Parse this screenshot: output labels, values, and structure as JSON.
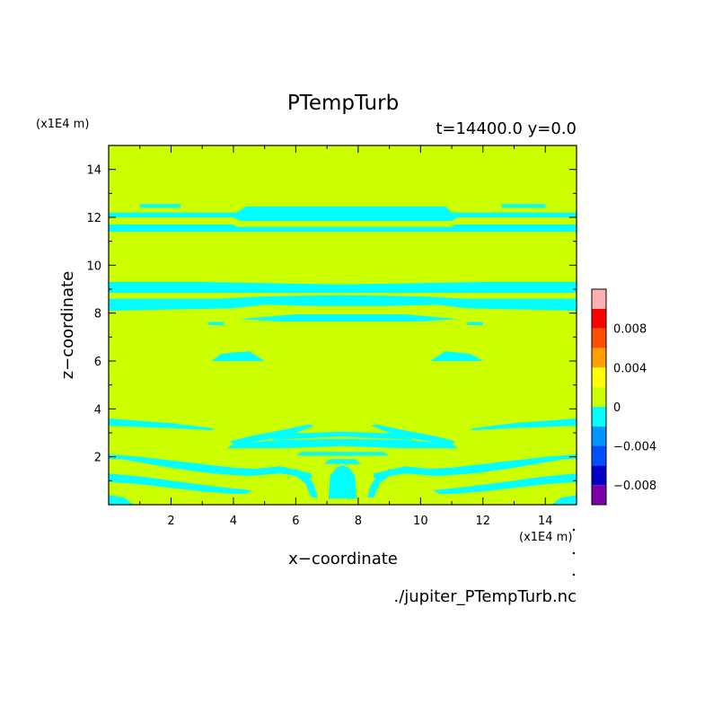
{
  "chart_data": {
    "type": "heatmap",
    "title": "PTempTurb",
    "subtitle": "t=14400.0 y=0.0",
    "xlabel": "x−coordinate",
    "ylabel": "z−coordinate",
    "x_unit": "(x1E4 m)",
    "z_unit": "(x1E4 m)",
    "xlim": [
      0,
      15
    ],
    "ylim": [
      0,
      15
    ],
    "x_ticks": [
      "2",
      "4",
      "6",
      "8",
      "10",
      "12",
      "14"
    ],
    "y_ticks": [
      "2",
      "4",
      "6",
      "8",
      "10",
      "12",
      "14"
    ],
    "background_level": {
      "range": [
        0,
        0.002
      ],
      "color": "#ccff00"
    },
    "colorbar": {
      "levels": [
        {
          "from": -0.01,
          "to": -0.008,
          "color": "#7b00a8"
        },
        {
          "from": -0.008,
          "to": -0.006,
          "color": "#0000c8"
        },
        {
          "from": -0.006,
          "to": -0.004,
          "color": "#0050ff"
        },
        {
          "from": -0.004,
          "to": -0.002,
          "color": "#0096ff"
        },
        {
          "from": -0.002,
          "to": 0,
          "color": "#00ffff"
        },
        {
          "from": 0,
          "to": 0.002,
          "color": "#ccff00"
        },
        {
          "from": 0.002,
          "to": 0.004,
          "color": "#ffff00"
        },
        {
          "from": 0.004,
          "to": 0.006,
          "color": "#ffa000"
        },
        {
          "from": 0.006,
          "to": 0.008,
          "color": "#ff5000"
        },
        {
          "from": 0.008,
          "to": 0.01,
          "color": "#ff0000"
        },
        {
          "from": 0.01,
          "to": 0.012,
          "color": "#ffb0b0"
        }
      ],
      "tick_labels": [
        {
          "value": 0.008,
          "label": "0.008"
        },
        {
          "value": 0.004,
          "label": "0.004"
        },
        {
          "value": 0,
          "label": "0"
        },
        {
          "value": -0.004,
          "label": "−0.004"
        },
        {
          "value": -0.008,
          "label": "−0.008"
        }
      ]
    },
    "negative_regions": {
      "color": "#00ffff",
      "polygons": [
        [
          [
            0,
            12
          ],
          [
            4,
            12
          ],
          [
            4.2,
            11.85
          ],
          [
            11,
            11.85
          ],
          [
            11.2,
            12
          ],
          [
            15,
            12
          ],
          [
            15,
            12.2
          ],
          [
            11,
            12.2
          ],
          [
            10.8,
            12.45
          ],
          [
            4.4,
            12.45
          ],
          [
            4.1,
            12.2
          ],
          [
            0,
            12.2
          ]
        ],
        [
          [
            0,
            11.4
          ],
          [
            15,
            11.4
          ],
          [
            15,
            11.7
          ],
          [
            11.1,
            11.7
          ],
          [
            11,
            11.6
          ],
          [
            4.1,
            11.6
          ],
          [
            4,
            11.7
          ],
          [
            0,
            11.7
          ]
        ],
        [
          [
            1,
            12.4
          ],
          [
            2.3,
            12.4
          ],
          [
            2.3,
            12.55
          ],
          [
            1,
            12.55
          ]
        ],
        [
          [
            12.6,
            12.4
          ],
          [
            14,
            12.4
          ],
          [
            14,
            12.55
          ],
          [
            12.6,
            12.55
          ]
        ],
        [
          [
            0,
            8.85
          ],
          [
            15,
            8.85
          ],
          [
            15,
            9.3
          ],
          [
            12,
            9.3
          ],
          [
            10,
            9.25
          ],
          [
            7.5,
            9.2
          ],
          [
            5,
            9.25
          ],
          [
            3,
            9.3
          ],
          [
            0,
            9.3
          ]
        ],
        [
          [
            0,
            8.1
          ],
          [
            4,
            8.2
          ],
          [
            5,
            8.35
          ],
          [
            6.5,
            8.3
          ],
          [
            9,
            8.3
          ],
          [
            10.5,
            8.35
          ],
          [
            11.5,
            8.2
          ],
          [
            15,
            8.1
          ],
          [
            15,
            8.6
          ],
          [
            11.5,
            8.6
          ],
          [
            10,
            8.7
          ],
          [
            7.5,
            8.75
          ],
          [
            5,
            8.7
          ],
          [
            3.5,
            8.6
          ],
          [
            0,
            8.6
          ]
        ],
        [
          [
            6.5,
            8.85
          ],
          [
            8.5,
            8.85
          ],
          [
            8.5,
            8.93
          ],
          [
            6.5,
            8.93
          ]
        ],
        [
          [
            4.2,
            7.75
          ],
          [
            5.5,
            7.65
          ],
          [
            10,
            7.65
          ],
          [
            11.2,
            7.75
          ],
          [
            9.5,
            7.95
          ],
          [
            6,
            7.95
          ]
        ],
        [
          [
            3.2,
            7.5
          ],
          [
            3.7,
            7.5
          ],
          [
            3.7,
            7.62
          ],
          [
            3.2,
            7.62
          ]
        ],
        [
          [
            11.5,
            7.5
          ],
          [
            12,
            7.5
          ],
          [
            12,
            7.62
          ],
          [
            11.5,
            7.62
          ]
        ],
        [
          [
            3.3,
            6.0
          ],
          [
            5,
            6.0
          ],
          [
            4.5,
            6.4
          ],
          [
            3.6,
            6.3
          ]
        ],
        [
          [
            10.3,
            6.0
          ],
          [
            12,
            6.0
          ],
          [
            11.6,
            6.3
          ],
          [
            10.8,
            6.4
          ]
        ],
        [
          [
            0,
            3.6
          ],
          [
            2,
            3.4
          ],
          [
            3.3,
            3.2
          ],
          [
            3.4,
            3.1
          ],
          [
            2,
            3.2
          ],
          [
            0,
            3.3
          ]
        ],
        [
          [
            15,
            3.6
          ],
          [
            13,
            3.4
          ],
          [
            11.7,
            3.2
          ],
          [
            11.6,
            3.1
          ],
          [
            13,
            3.2
          ],
          [
            15,
            3.3
          ]
        ],
        [
          [
            4,
            2.5
          ],
          [
            5,
            2.7
          ],
          [
            6,
            3.0
          ],
          [
            6.6,
            3.3
          ],
          [
            6.4,
            3.35
          ],
          [
            5.5,
            3.1
          ],
          [
            4.5,
            2.85
          ],
          [
            3.9,
            2.65
          ]
        ],
        [
          [
            11,
            2.5
          ],
          [
            10,
            2.7
          ],
          [
            9,
            3.0
          ],
          [
            8.4,
            3.3
          ],
          [
            8.6,
            3.35
          ],
          [
            9.5,
            3.1
          ],
          [
            10.5,
            2.85
          ],
          [
            11.1,
            2.65
          ]
        ],
        [
          [
            3.8,
            2.35
          ],
          [
            5.5,
            2.35
          ],
          [
            7.5,
            2.45
          ],
          [
            9.5,
            2.35
          ],
          [
            11.2,
            2.35
          ],
          [
            11,
            2.55
          ],
          [
            9.5,
            2.7
          ],
          [
            7.5,
            2.75
          ],
          [
            5.5,
            2.7
          ],
          [
            4,
            2.55
          ]
        ],
        [
          [
            5.2,
            2.7
          ],
          [
            7.5,
            2.85
          ],
          [
            9.8,
            2.7
          ],
          [
            9.5,
            2.95
          ],
          [
            7.5,
            3.05
          ],
          [
            5.5,
            2.95
          ]
        ],
        [
          [
            6,
            2.05
          ],
          [
            9,
            2.05
          ],
          [
            8.8,
            2.2
          ],
          [
            6.2,
            2.2
          ]
        ],
        [
          [
            0,
            2.1
          ],
          [
            1,
            2.0
          ],
          [
            2,
            1.85
          ],
          [
            3,
            1.7
          ],
          [
            4,
            1.55
          ],
          [
            4.7,
            1.5
          ],
          [
            5.5,
            1.6
          ],
          [
            6.5,
            1.3
          ],
          [
            6.5,
            1.1
          ],
          [
            5.5,
            1.3
          ],
          [
            4.5,
            1.2
          ],
          [
            3.3,
            1.3
          ],
          [
            2.2,
            1.5
          ],
          [
            1.3,
            1.7
          ],
          [
            0.4,
            1.9
          ],
          [
            0,
            1.9
          ]
        ],
        [
          [
            15,
            2.1
          ],
          [
            14,
            2.0
          ],
          [
            13,
            1.85
          ],
          [
            12,
            1.7
          ],
          [
            11,
            1.55
          ],
          [
            10.3,
            1.5
          ],
          [
            9.5,
            1.6
          ],
          [
            8.5,
            1.3
          ],
          [
            8.5,
            1.1
          ],
          [
            9.5,
            1.3
          ],
          [
            10.5,
            1.2
          ],
          [
            11.7,
            1.3
          ],
          [
            12.8,
            1.5
          ],
          [
            13.7,
            1.7
          ],
          [
            14.6,
            1.9
          ],
          [
            15,
            1.9
          ]
        ],
        [
          [
            0,
            0.95
          ],
          [
            1,
            0.85
          ],
          [
            2,
            0.7
          ],
          [
            3,
            0.55
          ],
          [
            4,
            0.45
          ],
          [
            4.4,
            0.45
          ],
          [
            4.6,
            0.6
          ],
          [
            3.5,
            0.75
          ],
          [
            2.3,
            0.95
          ],
          [
            1.2,
            1.15
          ],
          [
            0,
            1.3
          ]
        ],
        [
          [
            15,
            0.95
          ],
          [
            14,
            0.85
          ],
          [
            13,
            0.7
          ],
          [
            12,
            0.55
          ],
          [
            11,
            0.45
          ],
          [
            10.6,
            0.45
          ],
          [
            10.4,
            0.6
          ],
          [
            11.5,
            0.75
          ],
          [
            12.7,
            0.95
          ],
          [
            13.8,
            1.15
          ],
          [
            15,
            1.3
          ]
        ],
        [
          [
            0,
            0
          ],
          [
            0.8,
            0
          ],
          [
            0.5,
            0.3
          ],
          [
            0,
            0.4
          ]
        ],
        [
          [
            15,
            0
          ],
          [
            14.2,
            0
          ],
          [
            14.5,
            0.3
          ],
          [
            15,
            0.4
          ]
        ],
        [
          [
            5.6,
            1.3
          ],
          [
            6,
            1.5
          ],
          [
            6.4,
            1.2
          ],
          [
            6.6,
            0.8
          ],
          [
            6.7,
            0.3
          ],
          [
            6.5,
            0.3
          ],
          [
            6.3,
            0.9
          ],
          [
            6,
            1.2
          ]
        ],
        [
          [
            9.4,
            1.3
          ],
          [
            9,
            1.5
          ],
          [
            8.6,
            1.2
          ],
          [
            8.4,
            0.8
          ],
          [
            8.3,
            0.3
          ],
          [
            8.5,
            0.3
          ],
          [
            8.7,
            0.9
          ],
          [
            9,
            1.2
          ]
        ],
        [
          [
            7.05,
            0.25
          ],
          [
            7.95,
            0.25
          ],
          [
            7.9,
            1.2
          ],
          [
            7.7,
            1.55
          ],
          [
            7.5,
            1.65
          ],
          [
            7.3,
            1.55
          ],
          [
            7.1,
            1.2
          ]
        ],
        [
          [
            6.9,
            1.7
          ],
          [
            8.1,
            1.7
          ],
          [
            7.9,
            1.9
          ],
          [
            7.1,
            1.9
          ]
        ]
      ]
    }
  },
  "footer": {
    "file_label": "./jupiter_PTempTurb.nc"
  }
}
